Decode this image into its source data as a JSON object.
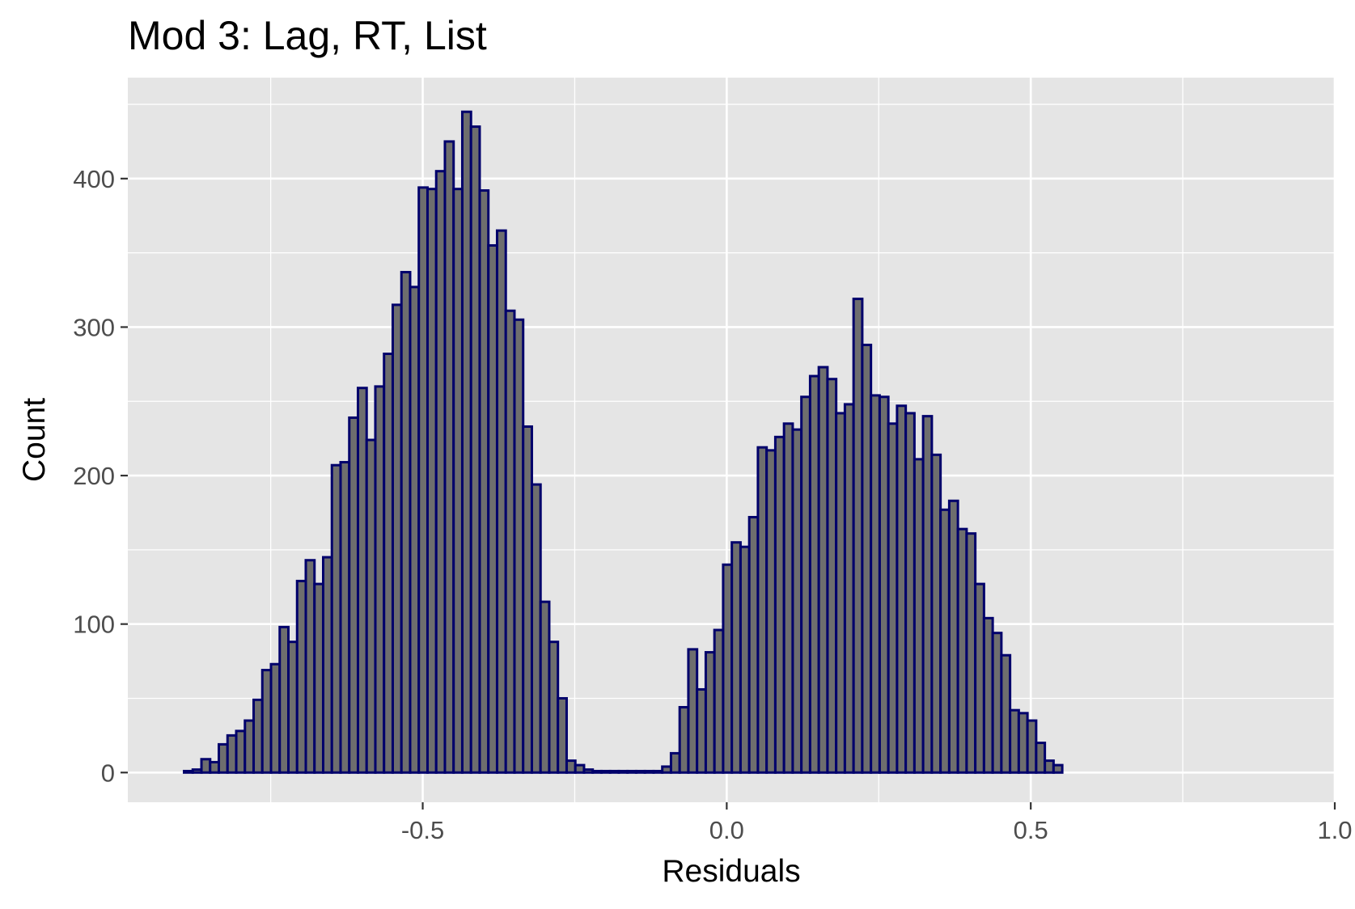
{
  "chart_data": {
    "type": "bar",
    "subtype": "histogram",
    "title": "Mod 3: Lag, RT, List",
    "xlabel": "Residuals",
    "ylabel": "Count",
    "xlim": [
      -0.985,
      1.0
    ],
    "ylim": [
      -20,
      468
    ],
    "x_ticks": [
      {
        "value": -0.5,
        "label": "-0.5"
      },
      {
        "value": 0.0,
        "label": "0.0"
      },
      {
        "value": 0.5,
        "label": "0.5"
      },
      {
        "value": 1.0,
        "label": "1.0"
      }
    ],
    "y_ticks": [
      {
        "value": 0,
        "label": "0"
      },
      {
        "value": 100,
        "label": "100"
      },
      {
        "value": 200,
        "label": "200"
      },
      {
        "value": 300,
        "label": "300"
      },
      {
        "value": 400,
        "label": "400"
      }
    ],
    "x_minor_grid": [
      -0.75,
      -0.25,
      0.25,
      0.75
    ],
    "y_minor_grid": [
      50,
      150,
      250,
      350,
      450
    ],
    "grid": true,
    "bin_start": -0.8925,
    "bin_width": 0.0143,
    "counts": [
      1,
      2,
      9,
      7,
      19,
      25,
      28,
      35,
      49,
      69,
      73,
      98,
      88,
      129,
      143,
      127,
      145,
      207,
      209,
      239,
      259,
      224,
      260,
      282,
      315,
      337,
      327,
      394,
      393,
      405,
      425,
      393,
      445,
      435,
      392,
      355,
      365,
      311,
      305,
      233,
      194,
      115,
      88,
      50,
      8,
      5,
      2,
      1,
      1,
      1,
      1,
      1,
      1,
      1,
      1,
      4,
      13,
      44,
      83,
      56,
      81,
      96,
      140,
      155,
      152,
      172,
      219,
      217,
      226,
      235,
      231,
      253,
      267,
      273,
      265,
      242,
      248,
      319,
      288,
      254,
      253,
      235,
      247,
      242,
      211,
      240,
      214,
      177,
      183,
      164,
      161,
      127,
      104,
      94,
      79,
      42,
      40,
      35,
      20,
      8,
      5
    ],
    "colors": {
      "panel_background": "#e5e5e5",
      "grid": "#ffffff",
      "bar_fill": "#6e6e6e",
      "bar_outline": "#00006b",
      "tick_label": "#4d4d4d",
      "tick_mark": "#333333"
    }
  }
}
